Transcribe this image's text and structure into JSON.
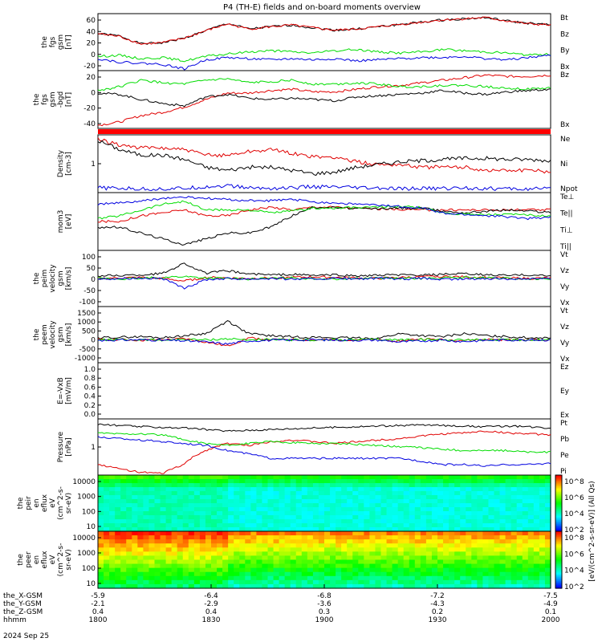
{
  "title": "P4 (TH-E) fields and on-board moments overview",
  "colors": {
    "black": "#000000",
    "red": "#e00000",
    "green": "#00dd00",
    "blue": "#0000e0"
  },
  "chart_data": [
    {
      "name": "fgs-gsm",
      "type": "line",
      "ylabel": [
        "the",
        "fgs",
        "gsm",
        "[nT]"
      ],
      "yticks": [
        "60",
        "40",
        "20",
        "0",
        "-20"
      ],
      "ylim": [
        -25,
        75
      ],
      "series": [
        {
          "name": "Bt",
          "color": "black",
          "values": [
            40,
            36,
            22,
            24,
            32,
            45,
            58,
            48,
            52,
            55,
            50,
            46,
            48,
            52,
            56,
            60,
            64,
            66,
            68,
            62,
            58,
            55
          ]
        },
        {
          "name": "Bz",
          "color": "red",
          "values": [
            40,
            35,
            22,
            24,
            32,
            45,
            57,
            48,
            52,
            55,
            50,
            46,
            48,
            52,
            56,
            60,
            64,
            66,
            68,
            62,
            57,
            55
          ]
        },
        {
          "name": "By",
          "color": "green",
          "values": [
            0,
            2,
            -4,
            -2,
            -8,
            0,
            4,
            8,
            10,
            8,
            6,
            10,
            12,
            8,
            6,
            8,
            12,
            10,
            8,
            6,
            2,
            4
          ]
        },
        {
          "name": "Bx",
          "color": "blue",
          "values": [
            -4,
            -10,
            -12,
            -14,
            -22,
            -6,
            -2,
            -4,
            -6,
            -4,
            -6,
            -4,
            -8,
            -6,
            -4,
            -2,
            -2,
            0,
            -4,
            -6,
            -2,
            2
          ]
        }
      ]
    },
    {
      "name": "fgs-gsm-delta",
      "type": "line",
      "ylabel": [
        "the",
        "fgs",
        "gsm",
        "-bgd",
        "[nT]"
      ],
      "yticks": [
        "20",
        "0",
        "-20",
        "-40"
      ],
      "ylim": [
        -55,
        35
      ],
      "series": [
        {
          "name": "Bz",
          "color": "red",
          "values": [
            -50,
            -45,
            -35,
            -30,
            -22,
            -10,
            0,
            0,
            4,
            6,
            2,
            2,
            6,
            10,
            12,
            16,
            20,
            24,
            28,
            26,
            26,
            28
          ]
        },
        {
          "name": "Bx",
          "color": "green",
          "values": [
            4,
            10,
            20,
            16,
            14,
            20,
            22,
            16,
            18,
            20,
            14,
            14,
            16,
            14,
            10,
            10,
            12,
            12,
            10,
            8,
            6,
            8
          ]
        },
        {
          "name": "",
          "color": "black",
          "values": [
            0,
            -2,
            -10,
            -16,
            -20,
            -6,
            -2,
            -8,
            -10,
            -8,
            -10,
            -12,
            -6,
            -4,
            -2,
            0,
            4,
            0,
            -2,
            2,
            4,
            6
          ]
        }
      ]
    },
    {
      "name": "flag-bar",
      "type": "bar"
    },
    {
      "name": "density",
      "type": "line",
      "ylabel": [
        "Density",
        "[cm-3]"
      ],
      "yticks": [
        "1"
      ],
      "log": true,
      "ylim": [
        0.5,
        3
      ],
      "series": [
        {
          "name": "Ne",
          "color": "red",
          "values": [
            2.6,
            2.2,
            2.0,
            2.0,
            1.9,
            1.6,
            1.6,
            1.8,
            1.9,
            1.7,
            1.5,
            1.5,
            1.3,
            1.2,
            1.2,
            1.1,
            1.1,
            1.1,
            1.0,
            1.0,
            1.0,
            0.95
          ]
        },
        {
          "name": "Ni",
          "color": "black",
          "values": [
            2.5,
            1.9,
            1.6,
            1.6,
            1.4,
            1.1,
            1.0,
            1.1,
            1.1,
            1.0,
            0.9,
            0.95,
            1.1,
            1.2,
            1.3,
            1.35,
            1.4,
            1.45,
            1.45,
            1.4,
            1.4,
            1.35
          ]
        },
        {
          "name": "Npot",
          "color": "blue",
          "values": [
            0.58,
            0.57,
            0.56,
            0.56,
            0.57,
            0.6,
            0.62,
            0.58,
            0.57,
            0.58,
            0.6,
            0.59,
            0.58,
            0.57,
            0.56,
            0.57,
            0.57,
            0.58,
            0.57,
            0.56,
            0.56,
            0.56
          ]
        }
      ]
    },
    {
      "name": "moments-temperature",
      "type": "line",
      "ylabel": [
        "mom3",
        "[eV]"
      ],
      "yticks": [],
      "ylim": [
        0,
        10
      ],
      "series": [
        {
          "name": "Te⊥",
          "color": "red",
          "values": [
            5,
            5,
            6,
            6.5,
            7,
            6,
            6,
            7,
            7.5,
            7,
            7.5,
            7.5,
            7.3,
            7.2,
            7.1,
            7,
            7,
            7,
            7,
            7,
            7,
            7
          ]
        },
        {
          "name": "Te||",
          "color": "black",
          "values": [
            4,
            4,
            3,
            2,
            1,
            2,
            3,
            3,
            4,
            6,
            7.5,
            7.4,
            7.2,
            7.2,
            7.3,
            7.3,
            6.8,
            6.5,
            6.8,
            7,
            6.8,
            6.6
          ]
        },
        {
          "name": "Ti⊥",
          "color": "green",
          "values": [
            5.5,
            6,
            7,
            8,
            8.5,
            7,
            7,
            7,
            6.5,
            6.8,
            7.3,
            7.3,
            7.4,
            7.5,
            7.6,
            7.4,
            6.5,
            6.3,
            6.2,
            6.2,
            6.1,
            6
          ]
        },
        {
          "name": "Ti||",
          "color": "blue",
          "values": [
            8,
            8.2,
            8.5,
            9,
            9.2,
            9,
            8.8,
            8.6,
            8.6,
            8.8,
            8.4,
            8.2,
            8,
            7.8,
            7.6,
            7.4,
            6.4,
            6.2,
            6,
            5.8,
            5.5,
            5.8
          ]
        }
      ]
    },
    {
      "name": "peim-velocity",
      "type": "line",
      "ylabel": [
        "the",
        "peim",
        "velocity",
        "gsm",
        "[km/s]"
      ],
      "yticks": [
        "100",
        "50",
        "0",
        "-50",
        "-100"
      ],
      "ylim": [
        -110,
        110
      ],
      "series": [
        {
          "name": "Vt",
          "color": "black",
          "values": [
            10,
            12,
            14,
            20,
            60,
            20,
            30,
            18,
            14,
            16,
            12,
            14,
            10,
            12,
            14,
            12,
            16,
            18,
            14,
            12,
            14,
            10
          ]
        },
        {
          "name": "Vz",
          "color": "red",
          "values": [
            0,
            2,
            4,
            0,
            -10,
            4,
            2,
            0,
            2,
            4,
            6,
            4,
            2,
            0,
            4,
            6,
            8,
            6,
            4,
            2,
            0,
            2
          ]
        },
        {
          "name": "Vy",
          "color": "green",
          "values": [
            0,
            -2,
            0,
            4,
            8,
            2,
            0,
            -2,
            0,
            2,
            0,
            -2,
            0,
            2,
            0,
            0,
            2,
            4,
            2,
            0,
            -2,
            0
          ]
        },
        {
          "name": "Vx",
          "color": "blue",
          "values": [
            -2,
            0,
            2,
            0,
            -40,
            -4,
            0,
            -2,
            0,
            -2,
            -2,
            0,
            -2,
            0,
            -2,
            0,
            -4,
            -2,
            0,
            -2,
            0,
            -2
          ]
        }
      ]
    },
    {
      "name": "peem-velocity",
      "type": "line",
      "ylabel": [
        "the",
        "peem",
        "velocity",
        "gsm",
        "[km/s]"
      ],
      "yticks": [
        "1500",
        "1000",
        "500",
        "0",
        "-500",
        "-1000"
      ],
      "ylim": [
        -1100,
        1600
      ],
      "series": [
        {
          "name": "Vt",
          "color": "black",
          "values": [
            100,
            120,
            150,
            100,
            200,
            300,
            900,
            300,
            200,
            150,
            120,
            100,
            90,
            80,
            300,
            200,
            150,
            300,
            200,
            150,
            100,
            120
          ]
        },
        {
          "name": "Vz",
          "color": "red",
          "values": [
            0,
            20,
            -20,
            0,
            50,
            -100,
            -300,
            100,
            0,
            20,
            -20,
            0,
            10,
            0,
            -50,
            50,
            0,
            -20,
            20,
            0,
            -10,
            0
          ]
        },
        {
          "name": "Vy",
          "color": "green",
          "values": [
            0,
            10,
            0,
            -10,
            20,
            0,
            50,
            0,
            10,
            0,
            -10,
            0,
            0,
            10,
            0,
            20,
            0,
            10,
            0,
            -10,
            0,
            10
          ]
        },
        {
          "name": "Vx",
          "color": "blue",
          "values": [
            -20,
            -10,
            0,
            -20,
            -50,
            -100,
            -200,
            -50,
            -20,
            -10,
            0,
            -10,
            -20,
            -10,
            -100,
            -50,
            -20,
            -80,
            -20,
            -10,
            0,
            -10
          ]
        }
      ]
    },
    {
      "name": "efield",
      "type": "line",
      "ylabel": [
        "E=-VxB",
        "[mV/m]"
      ],
      "yticks": [
        "1.0",
        "0.8",
        "0.6",
        "0.4",
        "0.2",
        "0.0"
      ],
      "ylim": [
        0,
        1
      ],
      "series": [
        {
          "name": "Ez",
          "color": "red",
          "values": []
        },
        {
          "name": "Ey",
          "color": "green",
          "values": []
        },
        {
          "name": "Ex",
          "color": "blue",
          "values": []
        }
      ]
    },
    {
      "name": "pressure",
      "type": "line",
      "ylabel": [
        "Pressure",
        "[nPa]"
      ],
      "yticks": [
        "1"
      ],
      "log": true,
      "ylim": [
        0.1,
        4
      ],
      "series": [
        {
          "name": "Pt",
          "color": "black",
          "values": [
            2.8,
            2.6,
            2.4,
            2.3,
            2.2,
            2.0,
            1.8,
            1.9,
            2.0,
            2.1,
            2.2,
            2.3,
            2.4,
            2.5,
            2.6,
            2.7,
            2.6,
            2.5,
            2.4,
            2.5,
            2.4,
            2.2
          ]
        },
        {
          "name": "Pb",
          "color": "red",
          "values": [
            0.2,
            0.15,
            0.12,
            0.11,
            0.2,
            0.5,
            0.8,
            0.7,
            0.9,
            1.0,
            0.9,
            0.8,
            0.9,
            1.0,
            1.1,
            1.3,
            1.5,
            1.6,
            1.8,
            1.6,
            1.5,
            1.4
          ]
        },
        {
          "name": "Pe",
          "color": "green",
          "values": [
            1.6,
            1.5,
            1.5,
            1.4,
            1.0,
            0.8,
            0.7,
            0.8,
            0.9,
            0.85,
            0.8,
            0.8,
            0.75,
            0.7,
            0.65,
            0.6,
            0.55,
            0.5,
            0.5,
            0.5,
            0.45,
            0.45
          ]
        },
        {
          "name": "Pi",
          "color": "blue",
          "values": [
            1.2,
            1.1,
            1.0,
            0.9,
            0.8,
            0.7,
            0.5,
            0.4,
            0.3,
            0.3,
            0.3,
            0.3,
            0.3,
            0.3,
            0.3,
            0.25,
            0.2,
            0.2,
            0.18,
            0.2,
            0.2,
            0.22
          ]
        }
      ]
    },
    {
      "name": "peir-en-eflux",
      "type": "heatmap",
      "ylabel": [
        "the",
        "peir",
        "en",
        "eflux",
        "eV",
        "(cm^2-s-",
        "sr-eV)"
      ],
      "yticks": [
        "10000",
        "1000",
        "100",
        "10"
      ]
    },
    {
      "name": "peer-en-eflux",
      "type": "heatmap",
      "ylabel": [
        "the",
        "peer",
        "en",
        "eflux",
        "eV",
        "(cm^2-s-",
        "sr-eV)"
      ],
      "yticks": [
        "10000",
        "1000",
        "100",
        "10"
      ]
    }
  ],
  "colorbar": {
    "label": "[eV/(cm^2-s-sr-eV)] (All Qs)",
    "ticks": [
      "10^8",
      "10^6",
      "10^4",
      "10^2"
    ]
  },
  "xaxis": {
    "rows": [
      {
        "label": "the_X-GSM",
        "values": [
          "-5.9",
          "-6.4",
          "-6.8",
          "-7.2",
          "-7.5"
        ]
      },
      {
        "label": "the_Y-GSM",
        "values": [
          "-2.1",
          "-2.9",
          "-3.6",
          "-4.3",
          "-4.9"
        ]
      },
      {
        "label": "the_Z-GSM",
        "values": [
          "0.4",
          "0.4",
          "0.3",
          "0.2",
          "0.1"
        ]
      },
      {
        "label": "hhmm",
        "values": [
          "1800",
          "1830",
          "1900",
          "1930",
          "2000"
        ]
      }
    ],
    "date": "2024 Sep 25"
  }
}
